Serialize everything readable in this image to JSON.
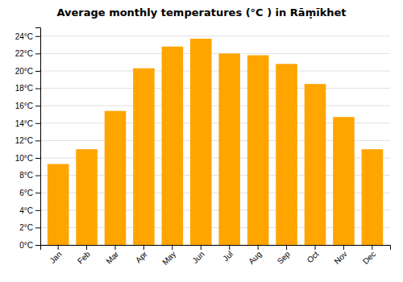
{
  "chart_data": {
    "type": "bar",
    "title": "Average monthly temperatures (°C ) in Rāṃīkhet",
    "categories": [
      "Jan",
      "Feb",
      "Mar",
      "Apr",
      "May",
      "Jun",
      "Jul",
      "Aug",
      "Sep",
      "Oct",
      "Nov",
      "Dec"
    ],
    "values": [
      9.3,
      11.0,
      15.4,
      20.3,
      22.8,
      23.7,
      22.0,
      21.8,
      20.8,
      18.5,
      14.7,
      11.0
    ],
    "color": "#FFA500",
    "ylim": [
      0,
      25
    ],
    "yticks": [
      {
        "value": 0,
        "label": "0°C"
      },
      {
        "value": 2,
        "label": "2°C"
      },
      {
        "value": 4,
        "label": "4°C"
      },
      {
        "value": 6,
        "label": "6°C"
      },
      {
        "value": 8,
        "label": "8°C"
      },
      {
        "value": 10,
        "label": "10°C"
      },
      {
        "value": 12,
        "label": "12°C"
      },
      {
        "value": 14,
        "label": "14°C"
      },
      {
        "value": 16,
        "label": "16°C"
      },
      {
        "value": 18,
        "label": "18°C"
      },
      {
        "value": 20,
        "label": "20°C"
      },
      {
        "value": 22,
        "label": "22°C"
      },
      {
        "value": 24,
        "label": "24°C"
      }
    ],
    "grid": true
  }
}
